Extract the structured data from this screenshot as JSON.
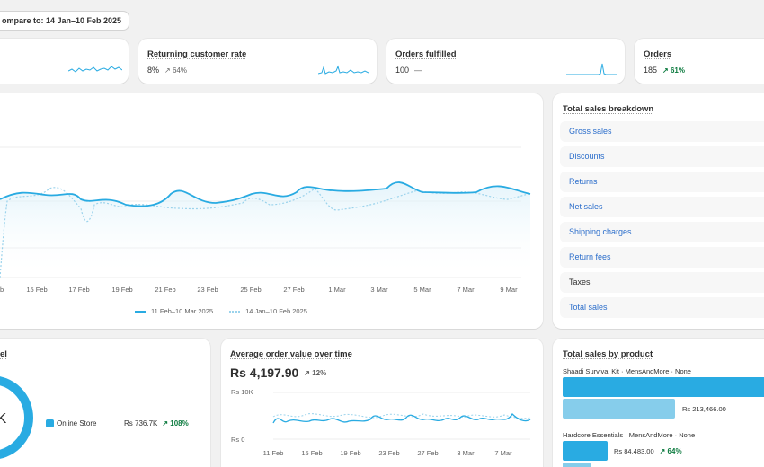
{
  "compare_label": "ompare to: 14 Jan–10 Feb 2025",
  "metrics": [
    {
      "title": "",
      "value": "",
      "change": ""
    },
    {
      "title": "Returning customer rate",
      "value": "8%",
      "change": "↗ 64%",
      "change_up": false
    },
    {
      "title": "Orders fulfilled",
      "value": "100",
      "change": "—",
      "change_up": false
    },
    {
      "title": "Orders",
      "value": "185",
      "change": "↗ 61%",
      "change_up": true
    }
  ],
  "main_chart": {
    "x_ticks": [
      "b",
      "15 Feb",
      "17 Feb",
      "19 Feb",
      "21 Feb",
      "23 Feb",
      "25 Feb",
      "27 Feb",
      "1 Mar",
      "3 Mar",
      "5 Mar",
      "7 Mar",
      "9 Mar"
    ],
    "legend_current": "11 Feb–10 Mar 2025",
    "legend_previous": "14 Jan–10 Feb 2025",
    "colors": {
      "current": "#29abe2",
      "previous": "#9bd3ec"
    }
  },
  "breakdown": {
    "title": "Total sales breakdown",
    "items": [
      {
        "label": "Gross sales",
        "link": true
      },
      {
        "label": "Discounts",
        "link": true
      },
      {
        "label": "Returns",
        "link": true
      },
      {
        "label": "Net sales",
        "link": true
      },
      {
        "label": "Shipping charges",
        "link": true
      },
      {
        "label": "Return fees",
        "link": true
      },
      {
        "label": "Taxes",
        "link": false
      },
      {
        "label": "Total sales",
        "link": true
      }
    ]
  },
  "channel": {
    "title": "el",
    "donut_label": "K",
    "legend_label": "Online Store",
    "legend_value": "Rs 736.7K",
    "legend_change": "↗ 108%"
  },
  "aov": {
    "title": "Average order value over time",
    "value": "Rs 4,197.90",
    "change": "↗ 12%",
    "y_ticks": [
      "Rs 10K",
      "Rs 0"
    ],
    "x_ticks": [
      "11 Feb",
      "15 Feb",
      "19 Feb",
      "23 Feb",
      "27 Feb",
      "3 Mar",
      "7 Mar"
    ]
  },
  "by_product": {
    "title": "Total sales by product",
    "products": [
      {
        "name": "Shaadi Survival Kit · MensAndMore · None",
        "current_share": 1.0,
        "previous_share": 0.51,
        "previous_value": "Rs 213,466.00",
        "change": ""
      },
      {
        "name": "Hardcore Essentials · MensAndMore · None",
        "current_share": 0.21,
        "previous_share": 0.13,
        "current_value": "Rs 84,483.00",
        "change": "↗ 64%"
      }
    ]
  }
}
